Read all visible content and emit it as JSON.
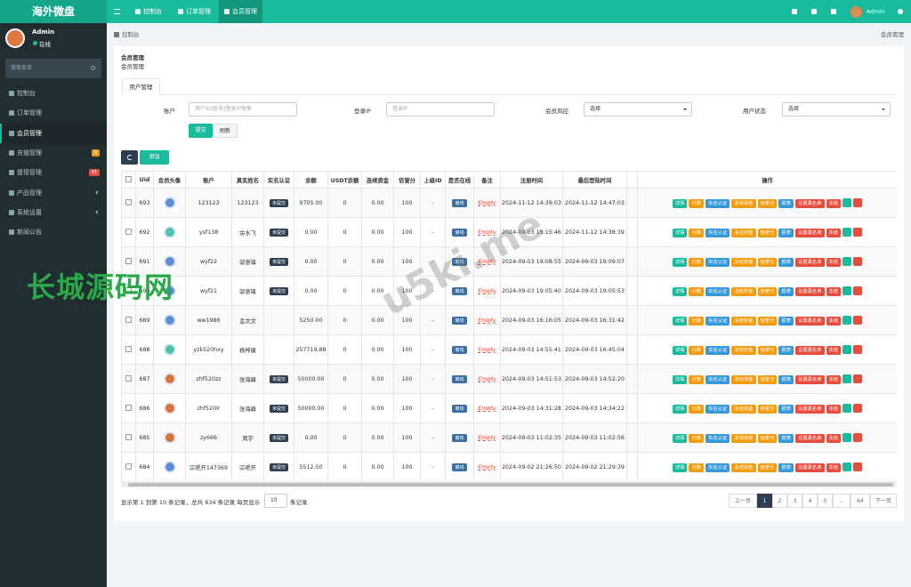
{
  "header": {
    "brand": "海外微盘",
    "nav": [
      "控制台",
      "订单管理",
      "会员管理"
    ],
    "user": "Admin"
  },
  "sidebar": {
    "user": "Admin",
    "status": "在线",
    "search": "搜索菜单",
    "menu": [
      {
        "label": "控制台"
      },
      {
        "label": "订单管理"
      },
      {
        "label": "会员管理"
      },
      {
        "label": "充值管理",
        "badge": "0"
      },
      {
        "label": "提现管理",
        "badge": "45"
      },
      {
        "label": "产品管理"
      },
      {
        "label": "系统设置"
      },
      {
        "label": "新闻公告"
      }
    ]
  },
  "breadcrumb": {
    "home": "控制台",
    "current": "会员管理"
  },
  "panel": {
    "title": "会员管理",
    "subtitle": "会员管理",
    "tab": "用户管理"
  },
  "filters": [
    {
      "label": "账户",
      "placeholder": "用户ID|姓名|登录IP搜索"
    },
    {
      "label": "登录IP",
      "placeholder": "登录IP"
    },
    {
      "label": "会员风控",
      "select": "选择"
    },
    {
      "label": "用户状态",
      "select": "选择"
    }
  ],
  "buttons": {
    "submit": "提交",
    "reset": "刷新",
    "add": "添加"
  },
  "table": {
    "columns": [
      "Uid",
      "会员头像",
      "账户",
      "真实姓名",
      "实名认证",
      "余额",
      "USDT余额",
      "连续资金",
      "信誉分",
      "上级ID",
      "是否在线",
      "备注",
      "注册时间",
      "最后登陆时间",
      "操作"
    ],
    "actions": [
      "详情",
      "分数",
      "实名认证",
      "冻结资金",
      "信誉分",
      "报表",
      "设置黑名单",
      "冻结"
    ],
    "rows": [
      {
        "uid": "693",
        "account": "123123",
        "name": "123123",
        "auth": "未提交",
        "balance": "9705.00",
        "usdt": "0",
        "fund": "0.00",
        "credit": "100",
        "parent": "-",
        "online": "离线",
        "remark": "Empty",
        "reg": "2024-11-12 14:39:03",
        "last": "2024-11-12 14:47:03"
      },
      {
        "uid": "692",
        "account": "ysf138",
        "name": "余水飞",
        "auth": "未提交",
        "balance": "0.00",
        "usdt": "0",
        "fund": "0.00",
        "credit": "100",
        "parent": "-",
        "online": "离线",
        "remark": "Empty",
        "reg": "2024-09-03 19:15:46",
        "last": "2024-11-12 14:38:39"
      },
      {
        "uid": "691",
        "account": "wyf22",
        "name": "邬意锋",
        "auth": "未提交",
        "balance": "0.00",
        "usdt": "0",
        "fund": "0.00",
        "credit": "100",
        "parent": "-",
        "online": "离线",
        "remark": "Empty",
        "reg": "2024-09-03 19:08:55",
        "last": "2024-09-03 19:09:07"
      },
      {
        "uid": "690",
        "account": "wyf21",
        "name": "邬意锋",
        "auth": "未提交",
        "balance": "0.00",
        "usdt": "0",
        "fund": "0.00",
        "credit": "100",
        "parent": "-",
        "online": "离线",
        "remark": "Empty",
        "reg": "2024-09-03 19:05:40",
        "last": "2024-09-03 19:05:53"
      },
      {
        "uid": "689",
        "account": "ww1986",
        "name": "孟文文",
        "balance": "5250.00",
        "usdt": "0",
        "fund": "0.00",
        "credit": "100",
        "parent": "-",
        "online": "离线",
        "remark": "Empty",
        "reg": "2024-09-03 16:16:05",
        "last": "2024-09-03 16:31:42"
      },
      {
        "uid": "688",
        "account": "yzk520hxy",
        "name": "杨梓康",
        "balance": "257719.88",
        "usdt": "0",
        "fund": "0.00",
        "credit": "100",
        "parent": "-",
        "online": "离线",
        "remark": "Empty",
        "reg": "2024-09-03 14:55:41",
        "last": "2024-09-03 16:45:04"
      },
      {
        "uid": "687",
        "account": "zhf520zz",
        "name": "张海峰",
        "auth": "未提交",
        "balance": "50000.00",
        "usdt": "0",
        "fund": "0.00",
        "credit": "100",
        "parent": "-",
        "online": "离线",
        "remark": "Empty",
        "reg": "2024-09-03 14:51:53",
        "last": "2024-09-03 14:52:20"
      },
      {
        "uid": "686",
        "account": "zhf520lr",
        "name": "张海峰",
        "auth": "未提交",
        "balance": "50000.00",
        "usdt": "0",
        "fund": "0.00",
        "credit": "100",
        "parent": "-",
        "online": "离线",
        "remark": "Empty",
        "reg": "2024-09-03 14:31:28",
        "last": "2024-09-03 14:34:22"
      },
      {
        "uid": "685",
        "account": "zy666",
        "name": "周宇",
        "auth": "未提交",
        "balance": "0.00",
        "usdt": "0",
        "fund": "0.00",
        "credit": "100",
        "parent": "-",
        "online": "离线",
        "remark": "Empty",
        "reg": "2024-09-03 11:02:35",
        "last": "2024-09-03 11:02:56"
      },
      {
        "uid": "684",
        "account": "宗艳开147369",
        "name": "宗艳开",
        "auth": "未提交",
        "balance": "5512.50",
        "usdt": "0",
        "fund": "0.00",
        "credit": "100",
        "parent": "-",
        "online": "离线",
        "remark": "Empty",
        "reg": "2024-09-02 21:26:50",
        "last": "2024-09-02 21:29:39"
      }
    ]
  },
  "footer": {
    "summary": "显示第 1 到第 10 条记录，总共 634 条记录 每页显示",
    "page_size": "10",
    "suffix": "条记录",
    "pagination": [
      "上一页",
      "1",
      "2",
      "3",
      "4",
      "5",
      "...",
      "64",
      "下一页"
    ]
  },
  "watermarks": [
    "长城源码网",
    "u5ki.me"
  ]
}
